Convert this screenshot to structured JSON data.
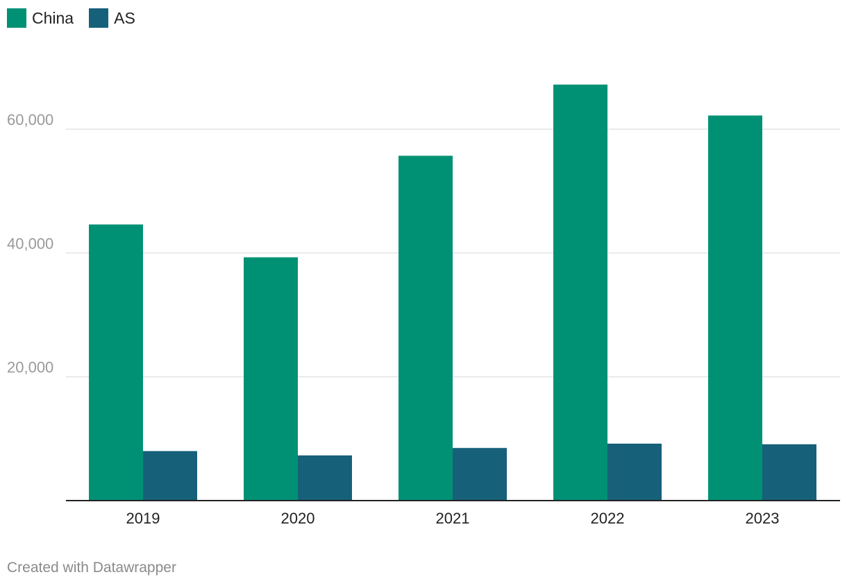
{
  "chart_data": {
    "type": "bar",
    "title": "",
    "xlabel": "",
    "ylabel": "",
    "categories": [
      "2019",
      "2020",
      "2021",
      "2022",
      "2023"
    ],
    "series": [
      {
        "name": "China",
        "color": "#009175",
        "values": [
          44600,
          39300,
          55700,
          67200,
          62200
        ]
      },
      {
        "name": "AS",
        "color": "#17607a",
        "values": [
          8000,
          7300,
          8500,
          9200,
          9100
        ]
      }
    ],
    "ylim": [
      0,
      72000
    ],
    "yticks": [
      20000,
      40000,
      60000
    ],
    "ytick_labels": [
      "20,000",
      "40,000",
      "60,000"
    ],
    "grid": true,
    "legend_position": "top-left"
  },
  "legend": [
    {
      "label": "China",
      "color": "#009175"
    },
    {
      "label": "AS",
      "color": "#17607a"
    }
  ],
  "footer": "Created with Datawrapper"
}
